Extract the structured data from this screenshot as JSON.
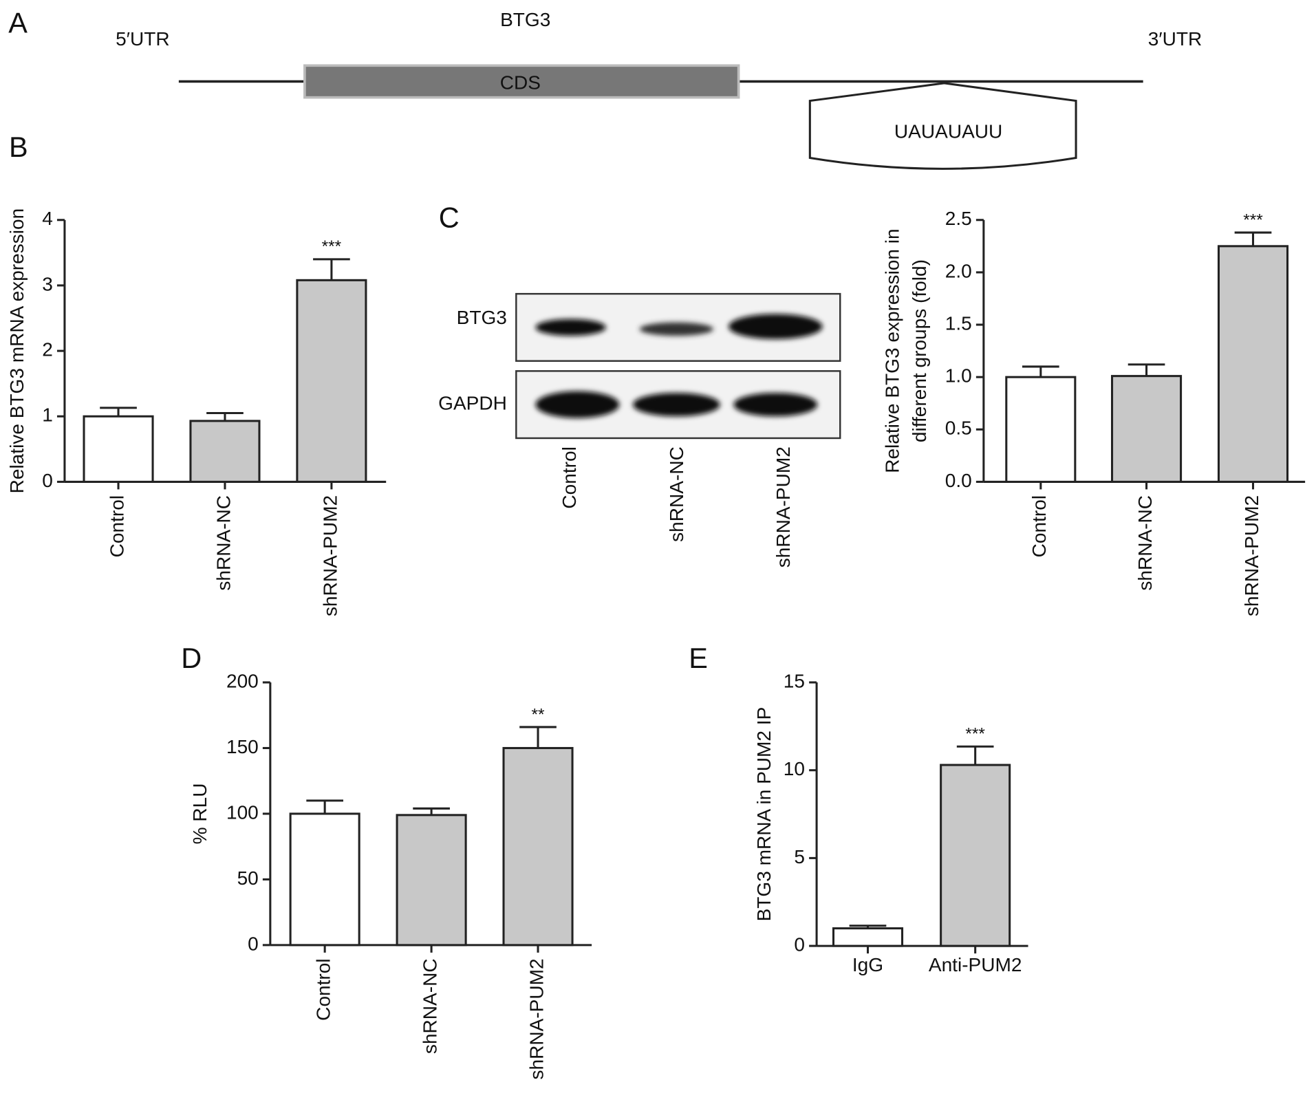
{
  "diagram": {
    "label": "A",
    "title": "BTG3",
    "left": "5′UTR",
    "right": "3′UTR",
    "cds": "CDS",
    "motif": "UAUAUAUU"
  },
  "blot": {
    "label": "C",
    "rows": [
      "BTG3",
      "GAPDH"
    ],
    "lanes": [
      "Control",
      "shRNA-NC",
      "shRNA-PUM2"
    ]
  },
  "chart_data": [
    {
      "type": "bar",
      "label": "B",
      "ylabel": [
        "Relative BTG3 mRNA expression"
      ],
      "categories": [
        "Control",
        "shRNA-NC",
        "shRNA-PUM2"
      ],
      "values": [
        1.0,
        0.93,
        3.08
      ],
      "errors": [
        0.13,
        0.12,
        0.32
      ],
      "colors": [
        "#ffffff",
        "#c8c8c8",
        "#c8c8c8"
      ],
      "significance": [
        null,
        null,
        "***"
      ],
      "ylim": [
        0,
        4
      ],
      "yticks": [
        0,
        1,
        2,
        3,
        4
      ]
    },
    {
      "type": "bar",
      "ylabel": [
        "Relative BTG3 expression in",
        "different groups (fold)"
      ],
      "categories": [
        "Control",
        "shRNA-NC",
        "shRNA-PUM2"
      ],
      "values": [
        1.0,
        1.01,
        2.25
      ],
      "errors": [
        0.1,
        0.11,
        0.13
      ],
      "colors": [
        "#ffffff",
        "#c8c8c8",
        "#c8c8c8"
      ],
      "significance": [
        null,
        null,
        "***"
      ],
      "ylim": [
        0,
        2.5
      ],
      "yticks": [
        {
          "value": 0,
          "label": "0.0"
        },
        0.5,
        {
          "value": 1,
          "label": "1.0"
        },
        1.5,
        {
          "value": 2,
          "label": "2.0"
        },
        2.5
      ]
    },
    {
      "type": "bar",
      "label": "D",
      "ylabel": [
        "% RLU"
      ],
      "categories": [
        "Control",
        "shRNA-NC",
        "shRNA-PUM2"
      ],
      "values": [
        100,
        99,
        150
      ],
      "errors": [
        10,
        5,
        16
      ],
      "colors": [
        "#ffffff",
        "#c8c8c8",
        "#c8c8c8"
      ],
      "significance": [
        null,
        null,
        "**"
      ],
      "ylim": [
        0,
        200
      ],
      "yticks": [
        0,
        50,
        100,
        150,
        200
      ]
    },
    {
      "type": "bar",
      "label": "E",
      "ylabel": [
        "BTG3 mRNA in PUM2 IP"
      ],
      "categories": [
        "IgG",
        "Anti-PUM2"
      ],
      "values": [
        1.0,
        10.3
      ],
      "errors": [
        0.15,
        1.05
      ],
      "colors": [
        "#ffffff",
        "#c8c8c8"
      ],
      "significance": [
        null,
        "***"
      ],
      "ylim": [
        0,
        15
      ],
      "yticks": [
        0,
        5,
        10,
        15
      ]
    }
  ]
}
